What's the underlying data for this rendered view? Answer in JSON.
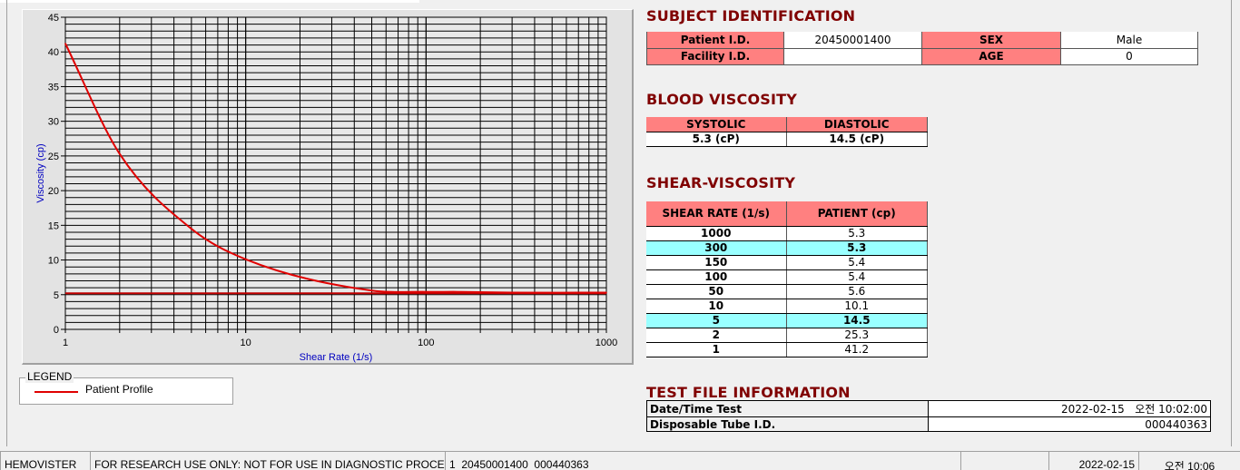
{
  "chart_data": {
    "type": "line",
    "xlabel": "Shear Rate (1/s)",
    "ylabel": "Viscosity (cp)",
    "xscale": "log",
    "xlim": [
      1,
      1000
    ],
    "ylim": [
      0,
      45
    ],
    "xticks": [
      "1",
      "10",
      "100",
      "1000"
    ],
    "yticks": [
      "0",
      "5",
      "10",
      "15",
      "20",
      "25",
      "30",
      "35",
      "40",
      "45"
    ],
    "grid": true,
    "legend_title": "LEGEND",
    "legend_placement": "below-left",
    "series": [
      {
        "name": "Patient Profile",
        "color": "#e00000",
        "x": [
          1,
          2,
          5,
          10,
          50,
          100,
          150,
          300,
          1000
        ],
        "y": [
          41.2,
          25.3,
          14.5,
          10.1,
          5.6,
          5.4,
          5.4,
          5.3,
          5.3
        ]
      },
      {
        "color": "#c00000",
        "x": [
          1,
          1000
        ],
        "y": [
          5.2,
          5.2
        ]
      }
    ]
  },
  "subject": {
    "title": "SUBJECT IDENTIFICATION",
    "patient_id_label": "Patient I.D.",
    "patient_id": "20450001400",
    "sex_label": "SEX",
    "sex": "Male",
    "facility_label": "Facility I.D.",
    "facility": "",
    "age_label": "AGE",
    "age": "0"
  },
  "blood": {
    "title": "BLOOD VISCOSITY",
    "systolic_label": "SYSTOLIC",
    "diastolic_label": "DIASTOLIC",
    "systolic": "5.3 (cP)",
    "diastolic": "14.5 (cP)"
  },
  "shear": {
    "title": "SHEAR-VISCOSITY",
    "col1": "SHEAR RATE (1/s)",
    "col2": "PATIENT (cp)",
    "highlight_color": "#99ffff",
    "rows": [
      [
        "1000",
        "5.3"
      ],
      [
        "300",
        "5.3"
      ],
      [
        "150",
        "5.4"
      ],
      [
        "100",
        "5.4"
      ],
      [
        "50",
        "5.6"
      ],
      [
        "10",
        "10.1"
      ],
      [
        "5",
        "14.5"
      ],
      [
        "2",
        "25.3"
      ],
      [
        "1",
        "41.2"
      ]
    ],
    "highlighted": [
      1,
      6
    ]
  },
  "testfile": {
    "title": "TEST FILE INFORMATION",
    "date_label": "Date/Time Test",
    "date": "2022-02-15   오전 10:02:00",
    "tube_label": "Disposable Tube I.D.",
    "tube": "000440363"
  },
  "status": {
    "app": "HEMOVISTER",
    "notice": "FOR RESEARCH USE ONLY: NOT FOR USE IN DIAGNOSTIC PROCEDURES",
    "file": "1  20450001400  000440363",
    "blank": "",
    "date": "2022-02-15",
    "time": "오전 10:06"
  },
  "colors": {
    "header_text": "#800000",
    "label_bg": "#ff8080"
  }
}
